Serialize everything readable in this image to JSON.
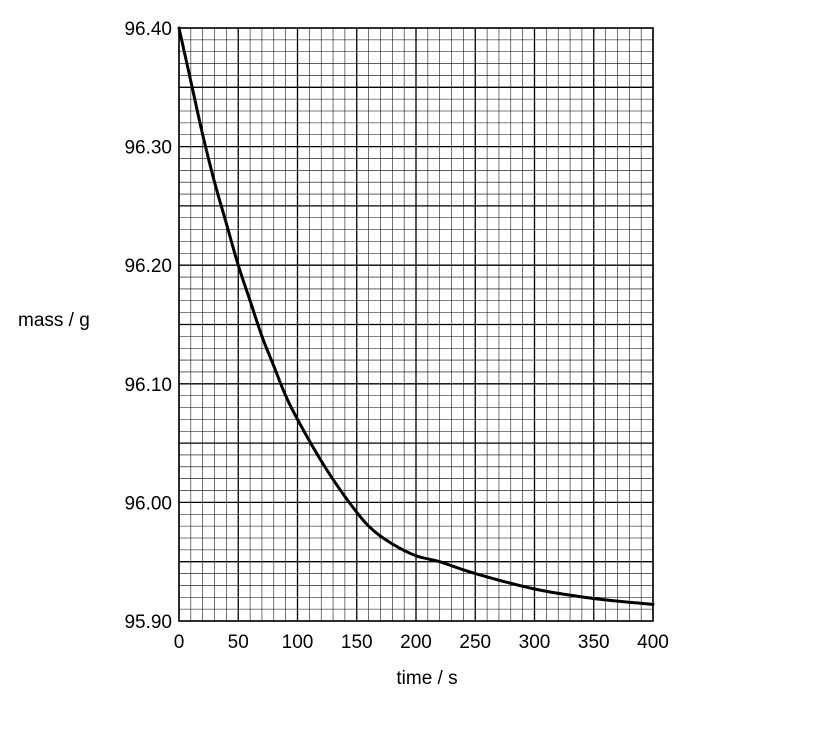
{
  "chart_data": {
    "type": "line",
    "title": "",
    "xlabel": "time / s",
    "ylabel": "mass / g",
    "xlim": [
      0,
      400
    ],
    "ylim": [
      95.9,
      96.4
    ],
    "x_ticks": [
      "0",
      "50",
      "100",
      "150",
      "200",
      "250",
      "300",
      "350",
      "400"
    ],
    "y_ticks": [
      "95.90",
      "96.00",
      "96.10",
      "96.20",
      "96.30",
      "96.40"
    ],
    "grid": true,
    "x_minor_step": 10,
    "y_minor_step": 0.01,
    "x_major_step": 50,
    "y_major_step": 0.05,
    "series": [
      {
        "x": [
          0,
          10,
          20,
          30,
          40,
          50,
          60,
          70,
          80,
          90,
          100,
          120,
          140,
          160,
          180,
          200,
          220,
          250,
          300,
          350,
          400
        ],
        "y": [
          96.4,
          96.355,
          96.31,
          96.27,
          96.235,
          96.2,
          96.17,
          96.14,
          96.115,
          96.09,
          96.07,
          96.035,
          96.005,
          95.98,
          95.965,
          95.955,
          95.95,
          95.94,
          95.927,
          95.919,
          95.914
        ],
        "color": "#000000"
      }
    ]
  }
}
